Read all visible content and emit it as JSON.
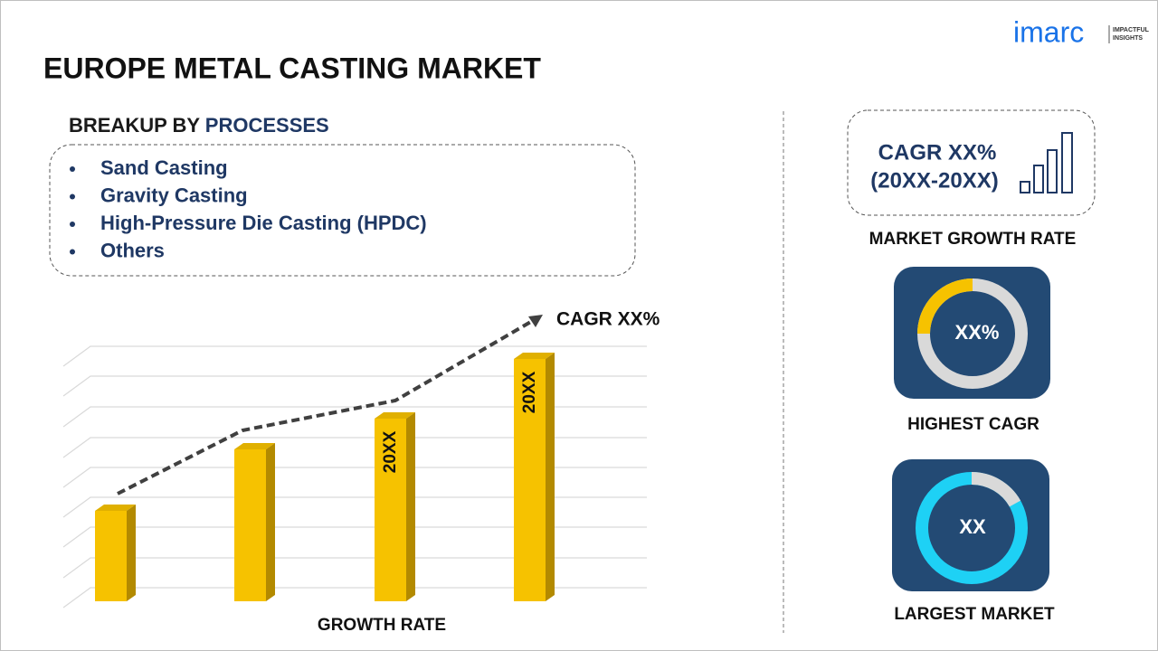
{
  "header": {
    "title": "EUROPE METAL CASTING MARKET",
    "logo": "imarc",
    "logo_tagline": [
      "IMPACTFUL",
      "INSIGHTS"
    ]
  },
  "breakup": {
    "heading_prefix": "BREAKUP BY",
    "heading_highlight": "PROCESSES",
    "items": [
      "Sand Casting",
      "Gravity Casting",
      "High-Pressure Die Casting (HPDC)",
      "Others"
    ]
  },
  "growth_chart": {
    "bar_labels": [
      "20XX",
      "20XX"
    ],
    "trend_label": "CAGR XX%",
    "axis_label": "GROWTH RATE"
  },
  "cards": [
    {
      "line1": "CAGR XX%",
      "line2": "(20XX-20XX)",
      "caption": "MARKET GROWTH RATE"
    },
    {
      "value": "XX%",
      "caption": "HIGHEST CAGR"
    },
    {
      "value": "XX",
      "caption": "LARGEST MARKET"
    }
  ]
}
